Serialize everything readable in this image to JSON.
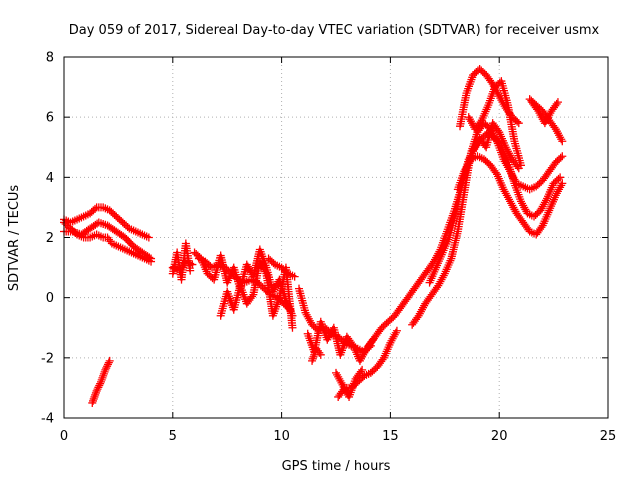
{
  "chart_data": {
    "type": "scatter",
    "title": "Day 059 of 2017, Sidereal Day-to-day VTEC variation (SDTVAR) for receiver usmx",
    "xlabel": "GPS time / hours",
    "ylabel": "SDTVAR / TECUs",
    "xlim": [
      0,
      25
    ],
    "ylim": [
      -4,
      8
    ],
    "xticks": [
      0,
      5,
      10,
      15,
      20,
      25
    ],
    "yticks": [
      -4,
      -2,
      0,
      2,
      4,
      6,
      8
    ],
    "grid": true,
    "marker": "+",
    "colors": {
      "series": "#ff0000",
      "axes": "#000000",
      "grid": "#b0b0b0"
    },
    "series": [
      {
        "x": [
          0.0,
          0.3,
          0.6,
          0.9,
          1.2,
          1.5,
          1.8,
          2.0,
          2.2,
          2.5,
          2.8,
          3.1,
          3.4,
          3.7,
          4.0
        ],
        "y": [
          2.5,
          2.3,
          2.1,
          2.0,
          2.0,
          2.1,
          2.0,
          2.0,
          1.8,
          1.7,
          1.6,
          1.5,
          1.4,
          1.3,
          1.2
        ]
      },
      {
        "x": [
          0.0,
          0.3,
          0.6,
          0.9,
          1.2,
          1.5,
          1.8,
          2.1,
          2.4,
          2.7,
          3.0,
          3.3,
          3.6,
          3.9
        ],
        "y": [
          2.6,
          2.5,
          2.6,
          2.7,
          2.8,
          3.0,
          3.0,
          2.9,
          2.7,
          2.5,
          2.3,
          2.2,
          2.1,
          2.0
        ]
      },
      {
        "x": [
          0.0,
          0.4,
          0.8,
          1.2,
          1.6,
          2.0,
          2.4,
          2.8,
          3.2,
          3.6,
          4.0
        ],
        "y": [
          2.2,
          2.2,
          2.1,
          2.3,
          2.5,
          2.4,
          2.2,
          2.0,
          1.7,
          1.5,
          1.3
        ]
      },
      {
        "x": [
          1.3,
          1.5,
          1.7,
          1.9,
          2.1
        ],
        "y": [
          -3.5,
          -3.1,
          -2.8,
          -2.4,
          -2.1
        ]
      },
      {
        "x": [
          5.0,
          5.3,
          5.6,
          5.9
        ],
        "y": [
          1.0,
          0.9,
          1.2,
          1.1
        ]
      },
      {
        "x": [
          5.0,
          5.2,
          5.4,
          5.6,
          5.8
        ],
        "y": [
          0.8,
          1.5,
          0.6,
          1.8,
          0.9
        ]
      },
      {
        "x": [
          6.2,
          6.5,
          6.8,
          7.1,
          7.4,
          7.7,
          8.0,
          8.3,
          8.6,
          8.9,
          9.2,
          9.5,
          9.8,
          10.1,
          10.4
        ],
        "y": [
          1.3,
          1.2,
          1.0,
          1.1,
          1.0,
          0.8,
          0.6,
          0.5,
          0.6,
          0.5,
          0.3,
          0.1,
          0.0,
          -0.2,
          -0.4
        ]
      },
      {
        "x": [
          6.0,
          6.3,
          6.6,
          6.9,
          7.2,
          7.5,
          7.8,
          8.1,
          8.4,
          8.7,
          9.0,
          9.3,
          9.6,
          9.9,
          10.2,
          10.5
        ],
        "y": [
          1.5,
          1.3,
          0.8,
          0.6,
          1.4,
          0.5,
          1.0,
          0.3,
          1.1,
          0.7,
          1.6,
          1.0,
          0.2,
          0.6,
          -0.1,
          -0.6
        ]
      },
      {
        "x": [
          7.2,
          7.5,
          7.8,
          8.1,
          8.4,
          8.7,
          9.0,
          9.3,
          9.6,
          9.9,
          10.2,
          10.5
        ],
        "y": [
          -0.6,
          0.2,
          -0.4,
          0.4,
          -0.2,
          0.1,
          1.2,
          0.8,
          -0.6,
          0.0,
          1.0,
          -1.0
        ]
      },
      {
        "x": [
          9.4,
          9.7,
          10.0,
          10.3,
          10.6
        ],
        "y": [
          1.3,
          1.1,
          1.0,
          0.8,
          0.7
        ]
      },
      {
        "x": [
          10.8,
          11.1,
          11.4,
          11.7,
          12.0,
          12.3,
          12.6,
          12.9,
          13.2,
          13.5,
          13.8,
          14.1
        ],
        "y": [
          0.3,
          -0.5,
          -0.9,
          -1.1,
          -1.0,
          -1.2,
          -1.3,
          -1.5,
          -1.6,
          -1.7,
          -1.8,
          -1.6
        ]
      },
      {
        "x": [
          11.2,
          11.5,
          11.8,
          12.1,
          12.4,
          12.7,
          13.0,
          13.3,
          13.6,
          13.9,
          14.2
        ],
        "y": [
          -1.2,
          -1.8,
          -0.8,
          -1.4,
          -1.0,
          -1.9,
          -1.3,
          -1.6,
          -2.1,
          -1.7,
          -1.4
        ]
      },
      {
        "x": [
          11.4,
          11.6,
          11.8
        ],
        "y": [
          -2.1,
          -1.7,
          -1.9
        ]
      },
      {
        "x": [
          12.6,
          12.9,
          13.2,
          13.5,
          13.8,
          14.1,
          14.4,
          14.7,
          15.0,
          15.3
        ],
        "y": [
          -3.3,
          -3.0,
          -3.0,
          -2.8,
          -2.6,
          -2.5,
          -2.3,
          -2.0,
          -1.5,
          -1.1
        ]
      },
      {
        "x": [
          12.5,
          12.8,
          13.1,
          13.4,
          13.7
        ],
        "y": [
          -2.5,
          -2.9,
          -3.3,
          -2.7,
          -2.4
        ]
      },
      {
        "x": [
          14.0,
          14.3,
          14.6,
          14.9,
          15.2,
          15.5,
          15.8,
          16.1,
          16.4,
          16.7,
          17.0,
          17.3,
          17.6,
          17.9,
          18.2,
          18.5
        ],
        "y": [
          -1.6,
          -1.3,
          -1.0,
          -0.8,
          -0.6,
          -0.3,
          0.0,
          0.3,
          0.6,
          0.9,
          1.2,
          1.6,
          2.2,
          2.8,
          3.5,
          4.3
        ]
      },
      {
        "x": [
          16.0,
          16.3,
          16.6,
          16.9,
          17.2,
          17.5,
          17.8,
          18.1,
          18.4,
          18.7,
          19.0,
          19.3,
          19.6,
          19.9,
          20.2,
          20.5,
          20.8,
          21.1,
          21.4,
          21.7,
          22.0,
          22.3,
          22.6,
          22.9
        ],
        "y": [
          -0.9,
          -0.6,
          -0.2,
          0.1,
          0.4,
          0.8,
          1.3,
          2.2,
          3.5,
          4.8,
          5.5,
          5.8,
          5.6,
          5.2,
          4.6,
          4.2,
          3.8,
          3.7,
          3.6,
          3.7,
          3.9,
          4.2,
          4.5,
          4.7
        ]
      },
      {
        "x": [
          16.8,
          17.1,
          17.4,
          17.7,
          18.0,
          18.3,
          18.6,
          18.9,
          19.2,
          19.5,
          19.8,
          20.1,
          20.4,
          20.7,
          21.0,
          21.3,
          21.6,
          21.9,
          22.2,
          22.5,
          22.8
        ],
        "y": [
          0.5,
          1.0,
          1.5,
          2.0,
          2.8,
          3.8,
          4.6,
          5.0,
          5.3,
          5.5,
          5.3,
          5.0,
          4.5,
          3.8,
          3.2,
          2.8,
          2.7,
          2.9,
          3.3,
          3.8,
          4.0
        ]
      },
      {
        "x": [
          18.1,
          18.4,
          18.7,
          19.0,
          19.3,
          19.6,
          19.9,
          20.2,
          20.5,
          20.8,
          21.1,
          21.4,
          21.7,
          22.0,
          22.3,
          22.6,
          22.9
        ],
        "y": [
          3.6,
          4.2,
          4.6,
          4.7,
          4.6,
          4.4,
          4.1,
          3.6,
          3.2,
          2.8,
          2.5,
          2.2,
          2.1,
          2.4,
          2.9,
          3.4,
          3.8
        ]
      },
      {
        "x": [
          18.2,
          18.5,
          18.8,
          19.1,
          19.4,
          19.7,
          20.0,
          20.3,
          20.6,
          20.9
        ],
        "y": [
          5.7,
          6.8,
          7.4,
          7.6,
          7.4,
          7.1,
          6.7,
          6.3,
          6.0,
          5.8
        ]
      },
      {
        "x": [
          18.6,
          18.9,
          19.2,
          19.5,
          19.8,
          20.1,
          20.4,
          20.7,
          21.0
        ],
        "y": [
          6.0,
          5.6,
          5.9,
          6.4,
          7.0,
          7.2,
          6.4,
          5.2,
          4.4
        ]
      },
      {
        "x": [
          18.8,
          19.1,
          19.4,
          19.7,
          20.0,
          20.3,
          20.6,
          20.9
        ],
        "y": [
          4.9,
          5.3,
          5.0,
          5.8,
          5.5,
          5.0,
          4.6,
          4.3
        ]
      },
      {
        "x": [
          21.4,
          21.7,
          22.0,
          22.3,
          22.6,
          22.9
        ],
        "y": [
          6.6,
          6.4,
          6.2,
          5.9,
          5.6,
          5.2
        ]
      },
      {
        "x": [
          21.5,
          21.8,
          22.1,
          22.4,
          22.7
        ],
        "y": [
          6.5,
          6.2,
          5.8,
          6.2,
          6.5
        ]
      }
    ]
  }
}
